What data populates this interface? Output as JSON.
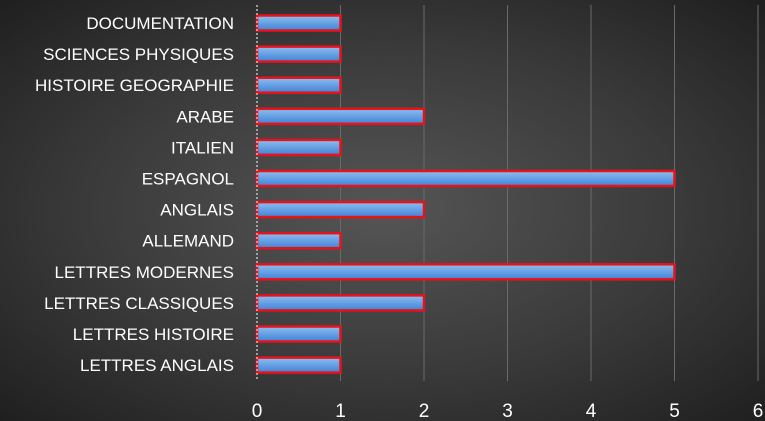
{
  "chart_data": {
    "type": "bar",
    "orientation": "horizontal",
    "title": "",
    "xlabel": "",
    "ylabel": "",
    "categories": [
      "DOCUMENTATION",
      "SCIENCES PHYSIQUES",
      "HISTOIRE GEOGRAPHIE",
      "ARABE",
      "ITALIEN",
      "ESPAGNOL",
      "ANGLAIS",
      "ALLEMAND",
      "LETTRES MODERNES",
      "LETTRES CLASSIQUES",
      "LETTRES HISTOIRE",
      "LETTRES ANGLAIS"
    ],
    "values": [
      1,
      1,
      1,
      2,
      1,
      5,
      2,
      1,
      5,
      2,
      1,
      1
    ],
    "xlim": [
      0,
      6
    ],
    "x_ticks": [
      "0",
      "1",
      "2",
      "3",
      "4",
      "5",
      "6"
    ],
    "grid": true,
    "legend": "none",
    "colors": {
      "bar_fill_top": "#8fbdf0",
      "bar_fill_bottom": "#3f83d6",
      "bar_stroke": "#e8121b",
      "gridline": "#6a6a6a",
      "text": "#ffffff"
    }
  }
}
